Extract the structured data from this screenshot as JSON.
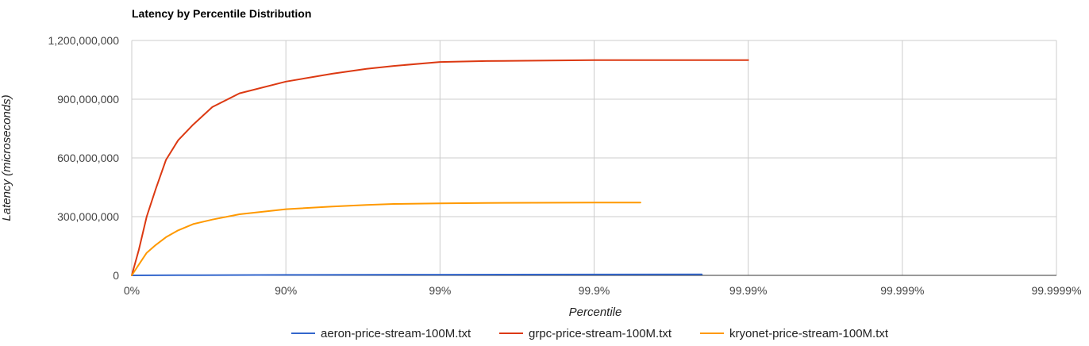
{
  "chart_data": {
    "type": "line",
    "title": "Latency by Percentile Distribution",
    "xlabel": "Percentile",
    "ylabel": "Latency (microseconds)",
    "x_scale": "log-reciprocal (1/(1-p))",
    "xlim": [
      0,
      99.9999
    ],
    "ylim": [
      0,
      1200000000
    ],
    "grid": true,
    "legend_position": "bottom",
    "x_ticks": [
      {
        "value": 0,
        "label": "0%"
      },
      {
        "value": 90,
        "label": "90%"
      },
      {
        "value": 99,
        "label": "99%"
      },
      {
        "value": 99.9,
        "label": "99.9%"
      },
      {
        "value": 99.99,
        "label": "99.99%"
      },
      {
        "value": 99.999,
        "label": "99.999%"
      },
      {
        "value": 99.9999,
        "label": "99.9999%"
      }
    ],
    "y_ticks": [
      {
        "value": 0,
        "label": "0"
      },
      {
        "value": 300000000,
        "label": "300,000,000"
      },
      {
        "value": 600000000,
        "label": "600,000,000"
      },
      {
        "value": 900000000,
        "label": "900,000,000"
      },
      {
        "value": 1200000000,
        "label": "1,200,000,000"
      }
    ],
    "series": [
      {
        "name": "aeron-price-stream-100M.txt",
        "color": "#3366cc",
        "points": [
          [
            0,
            0
          ],
          [
            50,
            1000000
          ],
          [
            90,
            2500000
          ],
          [
            99,
            3500000
          ],
          [
            99.9,
            4500000
          ],
          [
            99.98,
            5000000
          ]
        ]
      },
      {
        "name": "grpc-price-stream-100M.txt",
        "color": "#dc3912",
        "points": [
          [
            0,
            0
          ],
          [
            10,
            130000000
          ],
          [
            20,
            300000000
          ],
          [
            30,
            440000000
          ],
          [
            40,
            590000000
          ],
          [
            50,
            690000000
          ],
          [
            60,
            770000000
          ],
          [
            70,
            860000000
          ],
          [
            80,
            930000000
          ],
          [
            90,
            990000000
          ],
          [
            95,
            1030000000
          ],
          [
            97,
            1055000000
          ],
          [
            98,
            1070000000
          ],
          [
            99,
            1090000000
          ],
          [
            99.5,
            1095000000
          ],
          [
            99.9,
            1100000000
          ],
          [
            99.99,
            1100000000
          ]
        ]
      },
      {
        "name": "kryonet-price-stream-100M.txt",
        "color": "#ff9900",
        "points": [
          [
            0,
            0
          ],
          [
            10,
            55000000
          ],
          [
            20,
            115000000
          ],
          [
            30,
            155000000
          ],
          [
            40,
            195000000
          ],
          [
            50,
            230000000
          ],
          [
            60,
            262000000
          ],
          [
            70,
            285000000
          ],
          [
            80,
            312000000
          ],
          [
            90,
            338000000
          ],
          [
            95,
            352000000
          ],
          [
            97,
            360000000
          ],
          [
            98,
            365000000
          ],
          [
            99,
            368000000
          ],
          [
            99.5,
            370000000
          ],
          [
            99.9,
            372000000
          ],
          [
            99.95,
            372000000
          ]
        ]
      }
    ]
  }
}
